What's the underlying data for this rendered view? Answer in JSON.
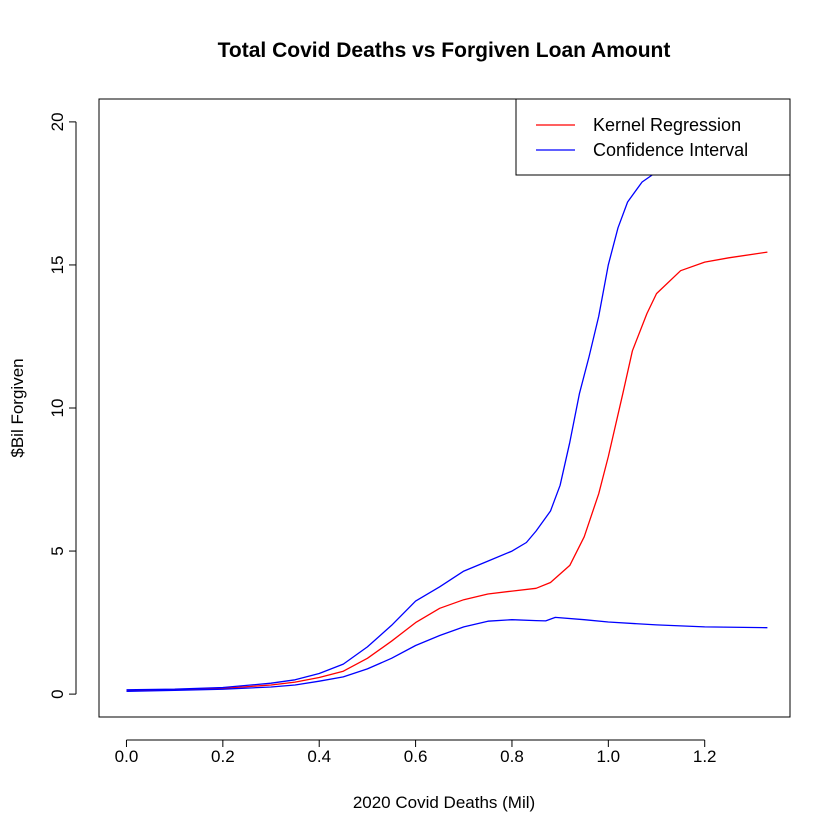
{
  "chart_data": {
    "type": "line",
    "title": "Total Covid Deaths vs Forgiven Loan Amount",
    "xlabel": "2020 Covid Deaths (Mil)",
    "ylabel": "$Bil Forgiven",
    "xlim": [
      -0.057,
      1.377
    ],
    "ylim": [
      -0.8,
      20.8
    ],
    "x_ticks": [
      "0.0",
      "0.2",
      "0.4",
      "0.6",
      "0.8",
      "1.0",
      "1.2"
    ],
    "y_ticks": [
      "0",
      "5",
      "10",
      "15",
      "20"
    ],
    "grid": false,
    "legend": {
      "position": "top-right",
      "entries": [
        "Kernel Regression",
        "Confidence Interval"
      ]
    },
    "colors": {
      "Kernel Regression": "#ff0000",
      "Confidence Interval": "#0000ff"
    },
    "series": [
      {
        "name": "Kernel Regression",
        "color": "#ff0000",
        "points": [
          [
            0.0,
            0.12
          ],
          [
            0.1,
            0.15
          ],
          [
            0.2,
            0.2
          ],
          [
            0.3,
            0.32
          ],
          [
            0.35,
            0.42
          ],
          [
            0.4,
            0.58
          ],
          [
            0.45,
            0.8
          ],
          [
            0.5,
            1.25
          ],
          [
            0.55,
            1.85
          ],
          [
            0.6,
            2.5
          ],
          [
            0.65,
            3.0
          ],
          [
            0.7,
            3.3
          ],
          [
            0.75,
            3.5
          ],
          [
            0.8,
            3.6
          ],
          [
            0.85,
            3.7
          ],
          [
            0.88,
            3.9
          ],
          [
            0.92,
            4.5
          ],
          [
            0.95,
            5.5
          ],
          [
            0.98,
            7.0
          ],
          [
            1.0,
            8.3
          ],
          [
            1.03,
            10.5
          ],
          [
            1.05,
            12.0
          ],
          [
            1.08,
            13.3
          ],
          [
            1.1,
            14.0
          ],
          [
            1.15,
            14.8
          ],
          [
            1.2,
            15.1
          ],
          [
            1.25,
            15.25
          ],
          [
            1.33,
            15.45
          ]
        ]
      },
      {
        "name": "Confidence Interval",
        "color": "#0000ff",
        "points": [
          [
            0.0,
            0.15
          ],
          [
            0.1,
            0.17
          ],
          [
            0.2,
            0.23
          ],
          [
            0.3,
            0.38
          ],
          [
            0.35,
            0.5
          ],
          [
            0.4,
            0.72
          ],
          [
            0.45,
            1.05
          ],
          [
            0.5,
            1.65
          ],
          [
            0.55,
            2.4
          ],
          [
            0.6,
            3.25
          ],
          [
            0.65,
            3.75
          ],
          [
            0.7,
            4.3
          ],
          [
            0.75,
            4.65
          ],
          [
            0.8,
            5.0
          ],
          [
            0.83,
            5.3
          ],
          [
            0.85,
            5.7
          ],
          [
            0.88,
            6.4
          ],
          [
            0.9,
            7.3
          ],
          [
            0.92,
            8.8
          ],
          [
            0.94,
            10.5
          ],
          [
            0.96,
            11.8
          ],
          [
            0.98,
            13.2
          ],
          [
            1.0,
            15.0
          ],
          [
            1.02,
            16.3
          ],
          [
            1.04,
            17.2
          ],
          [
            1.07,
            17.9
          ],
          [
            1.1,
            18.25
          ],
          [
            1.13,
            18.4
          ]
        ]
      },
      {
        "name": "Confidence Interval",
        "color": "#0000ff",
        "points": [
          [
            0.0,
            0.1
          ],
          [
            0.1,
            0.13
          ],
          [
            0.2,
            0.17
          ],
          [
            0.3,
            0.25
          ],
          [
            0.35,
            0.32
          ],
          [
            0.4,
            0.45
          ],
          [
            0.45,
            0.6
          ],
          [
            0.5,
            0.88
          ],
          [
            0.55,
            1.25
          ],
          [
            0.6,
            1.7
          ],
          [
            0.65,
            2.05
          ],
          [
            0.7,
            2.35
          ],
          [
            0.75,
            2.55
          ],
          [
            0.8,
            2.6
          ],
          [
            0.85,
            2.57
          ],
          [
            0.87,
            2.56
          ],
          [
            0.89,
            2.68
          ],
          [
            0.95,
            2.6
          ],
          [
            1.0,
            2.52
          ],
          [
            1.1,
            2.42
          ],
          [
            1.2,
            2.35
          ],
          [
            1.33,
            2.32
          ]
        ]
      }
    ]
  }
}
